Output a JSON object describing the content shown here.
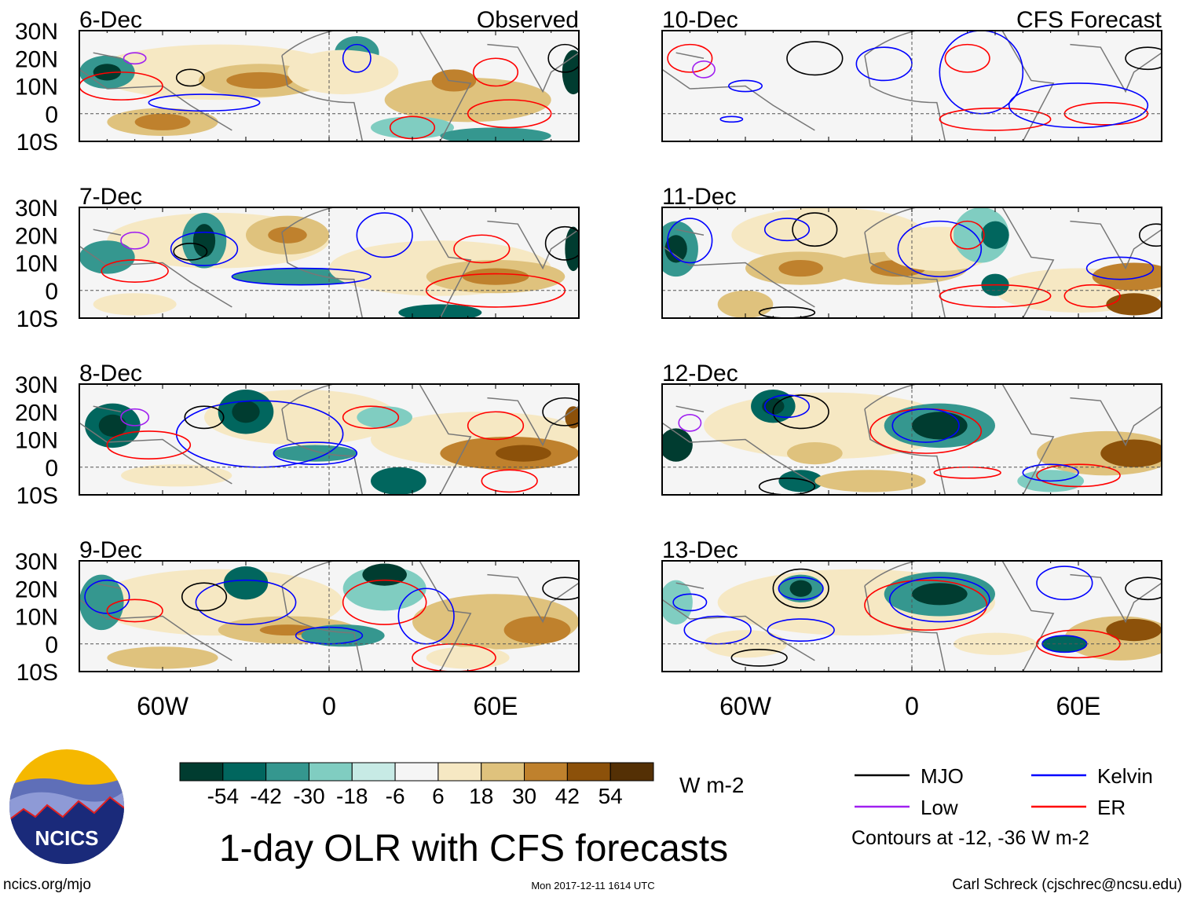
{
  "title": "1-day OLR with CFS forecasts",
  "units": "W m-2",
  "contour_note": "Contours at -12, -36 W m-2",
  "footer": {
    "url": "ncics.org/mjo",
    "timestamp": "Mon 2017-12-11 1614 UTC",
    "credit": "Carl Schreck (cjschrec@ncsu.edu)"
  },
  "logo_text": "NCICS",
  "axes": {
    "lon_range": [
      -90,
      90
    ],
    "lat_range": [
      -10,
      30
    ],
    "lat_ticks": [
      {
        "v": 30,
        "label": "30N"
      },
      {
        "v": 20,
        "label": "20N"
      },
      {
        "v": 10,
        "label": "10N"
      },
      {
        "v": 0,
        "label": "0"
      },
      {
        "v": -10,
        "label": "10S"
      }
    ],
    "lon_ticks": [
      {
        "v": -60,
        "label": "60W"
      },
      {
        "v": 0,
        "label": "0"
      },
      {
        "v": 60,
        "label": "60E"
      }
    ]
  },
  "colorbar": {
    "labels": [
      "-54",
      "-42",
      "-30",
      "-18",
      "-6",
      "6",
      "18",
      "30",
      "42",
      "54"
    ],
    "colors": [
      "#003c30",
      "#01665e",
      "#35978f",
      "#80cdc1",
      "#c7eae5",
      "#f5f5f5",
      "#f6e8c3",
      "#dfc27d",
      "#bf812d",
      "#8c510a",
      "#543005"
    ]
  },
  "legend": [
    {
      "label": "MJO",
      "color": "#000000"
    },
    {
      "label": "Kelvin",
      "color": "#0000ff"
    },
    {
      "label": "Low",
      "color": "#a020f0"
    },
    {
      "label": "ER",
      "color": "#ff0000"
    }
  ],
  "panels": [
    {
      "date": "6-Dec",
      "tag": "Observed",
      "col": 0,
      "row": 0,
      "blobs": [
        [
          -40,
          15,
          45,
          10,
          6
        ],
        [
          -25,
          12,
          22,
          6,
          7
        ],
        [
          -25,
          12,
          12,
          3,
          8
        ],
        [
          -60,
          -3,
          20,
          5,
          7
        ],
        [
          -60,
          -3,
          10,
          3,
          8
        ],
        [
          -80,
          15,
          10,
          6,
          2
        ],
        [
          -80,
          15,
          5,
          3,
          0
        ],
        [
          10,
          22,
          8,
          6,
          2
        ],
        [
          5,
          15,
          20,
          8,
          6
        ],
        [
          50,
          5,
          30,
          8,
          7
        ],
        [
          45,
          12,
          8,
          4,
          8
        ],
        [
          88,
          15,
          4,
          8,
          0
        ],
        [
          30,
          -5,
          15,
          4,
          3
        ],
        [
          60,
          -8,
          20,
          3,
          2
        ]
      ],
      "contours": [
        [
          "kelvin",
          -45,
          4,
          20,
          3
        ],
        [
          "er",
          -75,
          10,
          15,
          5
        ],
        [
          "mjo",
          -50,
          13,
          5,
          3
        ],
        [
          "er",
          60,
          15,
          8,
          5
        ],
        [
          "er",
          65,
          0,
          15,
          5
        ],
        [
          "mjo",
          85,
          20,
          6,
          5
        ],
        [
          "kelvin",
          10,
          20,
          5,
          5
        ],
        [
          "low",
          -70,
          20,
          4,
          2
        ],
        [
          "er",
          30,
          -5,
          8,
          4
        ]
      ]
    },
    {
      "date": "7-Dec",
      "tag": "",
      "col": 0,
      "row": 1,
      "blobs": [
        [
          -40,
          18,
          40,
          10,
          6
        ],
        [
          -15,
          20,
          15,
          7,
          7
        ],
        [
          -15,
          20,
          7,
          3,
          8
        ],
        [
          -45,
          18,
          8,
          10,
          2
        ],
        [
          -45,
          18,
          4,
          6,
          0
        ],
        [
          -10,
          5,
          25,
          3,
          2
        ],
        [
          40,
          8,
          40,
          10,
          6
        ],
        [
          60,
          5,
          25,
          6,
          7
        ],
        [
          60,
          5,
          12,
          3,
          8
        ],
        [
          -80,
          12,
          10,
          6,
          2
        ],
        [
          40,
          -8,
          15,
          3,
          1
        ],
        [
          88,
          15,
          3,
          8,
          0
        ],
        [
          -70,
          -5,
          15,
          4,
          6
        ]
      ],
      "contours": [
        [
          "kelvin",
          -10,
          5,
          25,
          3
        ],
        [
          "kelvin",
          -45,
          15,
          12,
          6
        ],
        [
          "mjo",
          -50,
          14,
          6,
          3
        ],
        [
          "er",
          55,
          15,
          10,
          5
        ],
        [
          "er",
          60,
          0,
          25,
          6
        ],
        [
          "mjo",
          85,
          17,
          7,
          6
        ],
        [
          "kelvin",
          20,
          20,
          10,
          8
        ],
        [
          "low",
          -70,
          18,
          5,
          3
        ],
        [
          "er",
          -70,
          7,
          12,
          4
        ]
      ]
    },
    {
      "date": "8-Dec",
      "tag": "",
      "col": 0,
      "row": 2,
      "blobs": [
        [
          -10,
          18,
          35,
          10,
          6
        ],
        [
          -30,
          20,
          10,
          8,
          1
        ],
        [
          -30,
          20,
          5,
          4,
          0
        ],
        [
          -78,
          15,
          10,
          8,
          1
        ],
        [
          -78,
          15,
          5,
          4,
          0
        ],
        [
          -5,
          5,
          15,
          3,
          2
        ],
        [
          55,
          10,
          40,
          10,
          6
        ],
        [
          65,
          5,
          25,
          6,
          8
        ],
        [
          70,
          5,
          10,
          3,
          9
        ],
        [
          25,
          -5,
          10,
          5,
          1
        ],
        [
          -55,
          -3,
          20,
          4,
          6
        ],
        [
          20,
          18,
          10,
          4,
          3
        ],
        [
          88,
          18,
          3,
          4,
          9
        ]
      ],
      "contours": [
        [
          "kelvin",
          -25,
          12,
          30,
          12
        ],
        [
          "mjo",
          -45,
          18,
          7,
          4
        ],
        [
          "er",
          60,
          15,
          10,
          5
        ],
        [
          "er",
          65,
          -5,
          10,
          4
        ],
        [
          "mjo",
          85,
          20,
          8,
          5
        ],
        [
          "er",
          15,
          18,
          10,
          4
        ],
        [
          "kelvin",
          -5,
          5,
          15,
          4
        ],
        [
          "low",
          -70,
          18,
          5,
          3
        ],
        [
          "er",
          -65,
          8,
          15,
          5
        ]
      ]
    },
    {
      "date": "9-Dec",
      "tag": "",
      "col": 0,
      "row": 3,
      "blobs": [
        [
          -40,
          15,
          45,
          12,
          6
        ],
        [
          -30,
          22,
          8,
          6,
          1
        ],
        [
          20,
          20,
          15,
          8,
          3
        ],
        [
          20,
          25,
          8,
          4,
          0
        ],
        [
          -15,
          5,
          25,
          5,
          7
        ],
        [
          -15,
          5,
          10,
          2,
          8
        ],
        [
          60,
          8,
          30,
          10,
          7
        ],
        [
          75,
          5,
          12,
          5,
          8
        ],
        [
          -82,
          15,
          8,
          10,
          2
        ],
        [
          5,
          3,
          15,
          4,
          2
        ],
        [
          50,
          -5,
          15,
          4,
          6
        ],
        [
          -60,
          -5,
          20,
          4,
          7
        ]
      ],
      "contours": [
        [
          "kelvin",
          -30,
          15,
          18,
          8
        ],
        [
          "mjo",
          -45,
          17,
          8,
          5
        ],
        [
          "er",
          20,
          15,
          15,
          8
        ],
        [
          "kelvin",
          35,
          10,
          10,
          10
        ],
        [
          "er",
          45,
          -5,
          15,
          5
        ],
        [
          "mjo",
          85,
          20,
          8,
          4
        ],
        [
          "kelvin",
          0,
          3,
          12,
          3
        ],
        [
          "kelvin",
          -80,
          17,
          8,
          6
        ],
        [
          "er",
          -70,
          12,
          10,
          4
        ]
      ]
    },
    {
      "date": "10-Dec",
      "tag": "CFS Forecast",
      "col": 1,
      "row": 0,
      "blobs": [],
      "contours": [
        [
          "mjo",
          -35,
          20,
          10,
          6
        ],
        [
          "kelvin",
          -60,
          10,
          6,
          2
        ],
        [
          "kelvin",
          -65,
          -2,
          4,
          1
        ],
        [
          "kelvin",
          -10,
          18,
          10,
          6
        ],
        [
          "kelvin",
          25,
          15,
          15,
          15
        ],
        [
          "er",
          20,
          20,
          8,
          5
        ],
        [
          "er",
          30,
          -2,
          20,
          4
        ],
        [
          "er",
          70,
          0,
          15,
          4
        ],
        [
          "kelvin",
          60,
          3,
          25,
          8
        ],
        [
          "mjo",
          85,
          20,
          8,
          4
        ],
        [
          "er",
          -80,
          20,
          8,
          5
        ],
        [
          "low",
          -75,
          16,
          4,
          3
        ]
      ]
    },
    {
      "date": "11-Dec",
      "tag": "",
      "col": 1,
      "row": 1,
      "blobs": [
        [
          -30,
          20,
          35,
          10,
          6
        ],
        [
          -40,
          8,
          20,
          6,
          7
        ],
        [
          -40,
          8,
          8,
          3,
          8
        ],
        [
          -5,
          8,
          25,
          6,
          7
        ],
        [
          -5,
          8,
          10,
          3,
          8
        ],
        [
          10,
          15,
          20,
          8,
          6
        ],
        [
          25,
          20,
          10,
          10,
          3
        ],
        [
          30,
          20,
          5,
          5,
          1
        ],
        [
          -85,
          15,
          8,
          10,
          2
        ],
        [
          -85,
          15,
          4,
          5,
          0
        ],
        [
          60,
          0,
          30,
          8,
          6
        ],
        [
          80,
          5,
          15,
          5,
          8
        ],
        [
          30,
          2,
          5,
          4,
          1
        ],
        [
          80,
          -5,
          10,
          4,
          9
        ],
        [
          -60,
          -5,
          10,
          5,
          7
        ]
      ],
      "contours": [
        [
          "mjo",
          -35,
          22,
          8,
          6
        ],
        [
          "kelvin",
          -45,
          22,
          8,
          4
        ],
        [
          "kelvin",
          10,
          15,
          15,
          10
        ],
        [
          "er",
          20,
          20,
          6,
          5
        ],
        [
          "er",
          30,
          -2,
          20,
          4
        ],
        [
          "er",
          65,
          -2,
          10,
          4
        ],
        [
          "kelvin",
          75,
          8,
          12,
          4
        ],
        [
          "mjo",
          88,
          20,
          6,
          4
        ],
        [
          "kelvin",
          -80,
          18,
          8,
          8
        ],
        [
          "mjo",
          -45,
          -8,
          10,
          2
        ]
      ]
    },
    {
      "date": "12-Dec",
      "tag": "",
      "col": 1,
      "row": 2,
      "blobs": [
        [
          -30,
          15,
          45,
          12,
          6
        ],
        [
          -50,
          22,
          8,
          6,
          1
        ],
        [
          -50,
          22,
          4,
          3,
          0
        ],
        [
          10,
          15,
          20,
          8,
          2
        ],
        [
          10,
          15,
          10,
          5,
          0
        ],
        [
          -85,
          8,
          6,
          6,
          0
        ],
        [
          70,
          5,
          25,
          8,
          7
        ],
        [
          80,
          5,
          12,
          5,
          9
        ],
        [
          -35,
          5,
          10,
          4,
          7
        ],
        [
          -40,
          -5,
          8,
          4,
          1
        ],
        [
          50,
          -5,
          12,
          4,
          3
        ],
        [
          -15,
          -5,
          20,
          4,
          7
        ]
      ],
      "contours": [
        [
          "mjo",
          -40,
          20,
          10,
          6
        ],
        [
          "kelvin",
          -45,
          22,
          8,
          4
        ],
        [
          "er",
          5,
          13,
          20,
          8
        ],
        [
          "kelvin",
          5,
          15,
          12,
          6
        ],
        [
          "er",
          20,
          -2,
          12,
          2
        ],
        [
          "er",
          60,
          -3,
          15,
          4
        ],
        [
          "kelvin",
          50,
          -2,
          10,
          3
        ],
        [
          "mjo",
          -45,
          -7,
          10,
          3
        ],
        [
          "low",
          -80,
          16,
          4,
          3
        ]
      ]
    },
    {
      "date": "13-Dec",
      "tag": "",
      "col": 1,
      "row": 3,
      "blobs": [
        [
          -20,
          15,
          50,
          12,
          6
        ],
        [
          -40,
          20,
          8,
          5,
          2
        ],
        [
          -40,
          20,
          4,
          3,
          0
        ],
        [
          10,
          18,
          20,
          8,
          2
        ],
        [
          10,
          18,
          10,
          4,
          0
        ],
        [
          75,
          2,
          20,
          8,
          7
        ],
        [
          80,
          5,
          10,
          4,
          9
        ],
        [
          55,
          0,
          8,
          3,
          1
        ],
        [
          30,
          0,
          15,
          4,
          6
        ],
        [
          -85,
          15,
          6,
          8,
          3
        ],
        [
          -60,
          0,
          15,
          5,
          6
        ]
      ],
      "contours": [
        [
          "mjo",
          -40,
          20,
          10,
          7
        ],
        [
          "kelvin",
          -40,
          20,
          8,
          4
        ],
        [
          "er",
          5,
          14,
          22,
          9
        ],
        [
          "kelvin",
          10,
          16,
          18,
          8
        ],
        [
          "er",
          60,
          0,
          15,
          5
        ],
        [
          "kelvin",
          55,
          0,
          8,
          3
        ],
        [
          "mjo",
          -55,
          -5,
          10,
          3
        ],
        [
          "kelvin",
          -70,
          5,
          12,
          5
        ],
        [
          "kelvin",
          -40,
          5,
          12,
          4
        ],
        [
          "kelvin",
          -80,
          15,
          6,
          3
        ],
        [
          "kelvin",
          55,
          22,
          10,
          6
        ],
        [
          "mjo",
          85,
          20,
          8,
          4
        ]
      ]
    }
  ]
}
